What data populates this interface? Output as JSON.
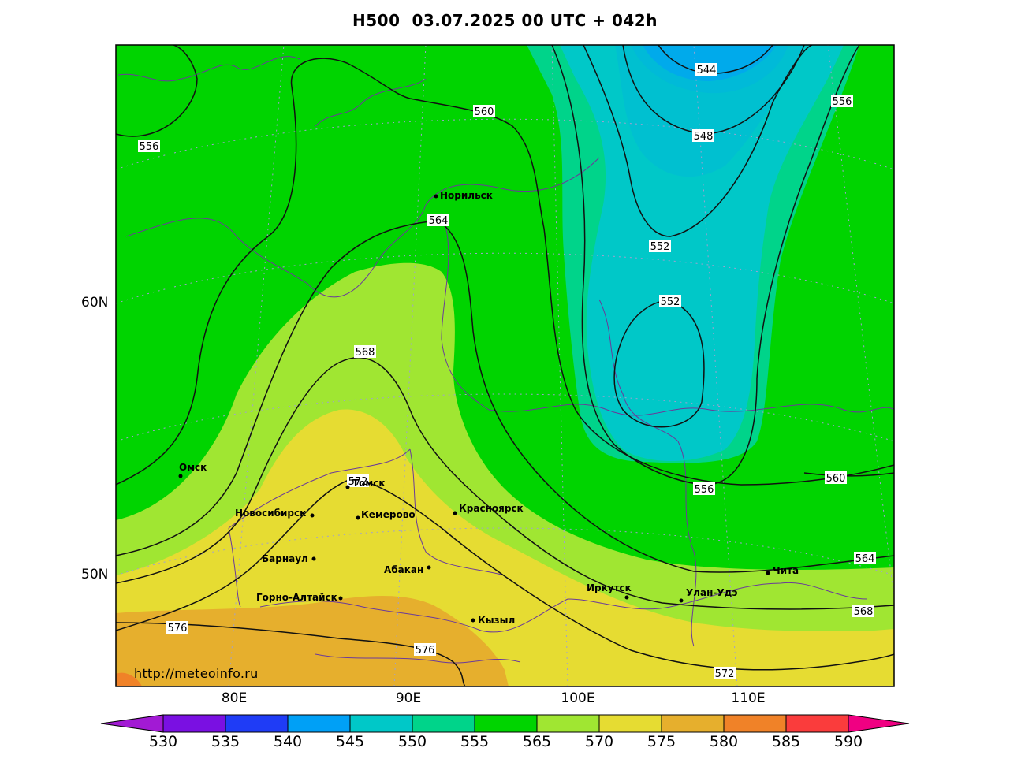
{
  "title": "H500  03.07.2025 00 UTC + 042h",
  "url": "http://meteoinfo.ru",
  "latitude_labels": [
    "60N",
    "50N"
  ],
  "longitude_labels": [
    "80E",
    "90E",
    "100E",
    "110E"
  ],
  "colorbar": {
    "ticks": [
      "530",
      "535",
      "540",
      "545",
      "550",
      "555",
      "565",
      "570",
      "575",
      "580",
      "585",
      "590"
    ],
    "colors": [
      "#a21ad4",
      "#7a10e2",
      "#1f3cf6",
      "#00a0f6",
      "#00c8c8",
      "#00d48a",
      "#00d400",
      "#a0e632",
      "#e6dc32",
      "#e6af2d",
      "#f08228",
      "#fa3c3c",
      "#f00082"
    ]
  },
  "cities": [
    "Норильск",
    "Омск",
    "Томск",
    "Новосибирск",
    "Кемерово",
    "Красноярск",
    "Барнаул",
    "Абакан",
    "Горно-Алтайск",
    "Кызыл",
    "Иркутск",
    "Улан-Удэ",
    "Чита"
  ],
  "contour_labels": [
    "556",
    "560",
    "544",
    "548",
    "556",
    "564",
    "552",
    "552",
    "568",
    "572",
    "560",
    "556",
    "564",
    "568",
    "576",
    "576",
    "572"
  ]
}
